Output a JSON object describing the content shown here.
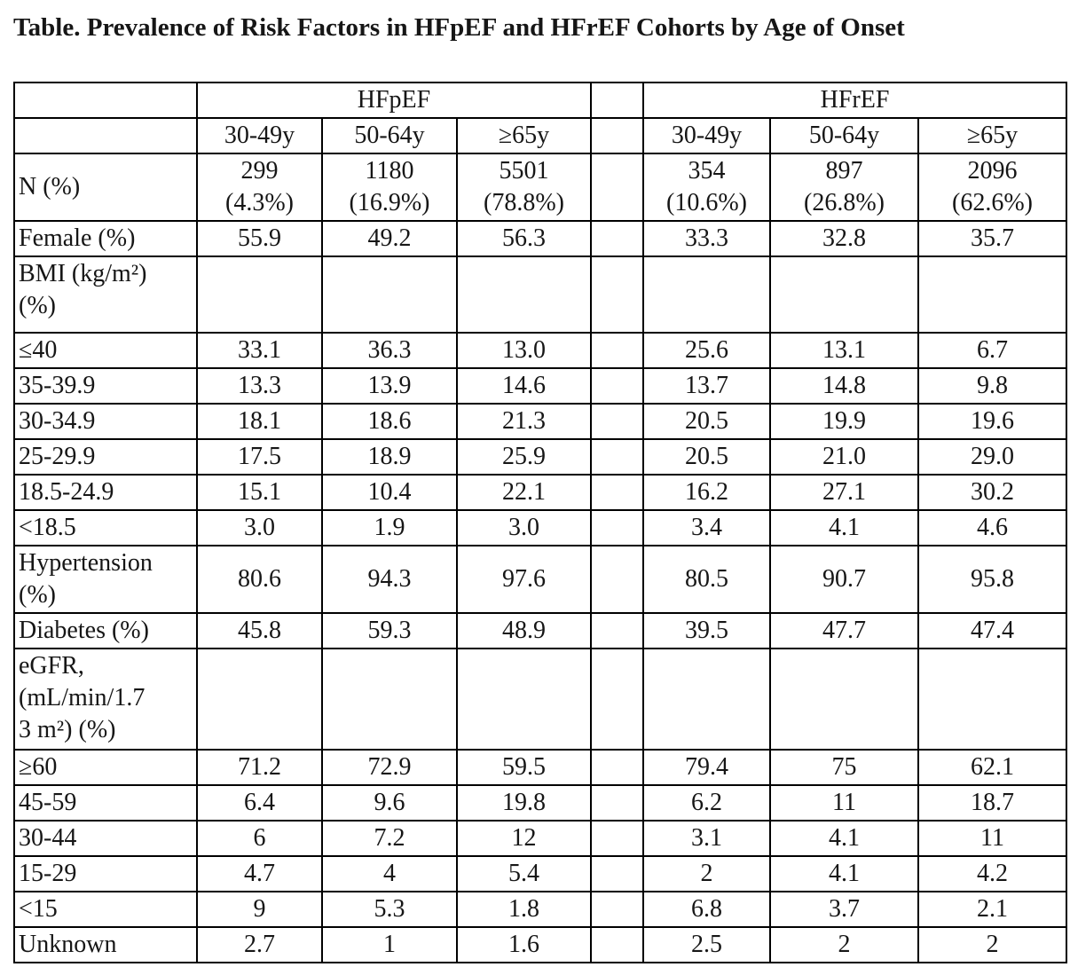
{
  "title": "Table. Prevalence of Risk Factors in HFpEF and HFrEF Cohorts by Age of Onset",
  "table": {
    "group_headers": [
      "HFpEF",
      "HFrEF"
    ],
    "age_headers": [
      "30-49y",
      "50-64y",
      "≥65y"
    ],
    "rows": [
      {
        "label": "N (%)",
        "section": false,
        "hfpef": [
          "299\n(4.3%)",
          "1180\n(16.9%)",
          "5501\n(78.8%)"
        ],
        "hfref": [
          "354\n(10.6%)",
          "897\n(26.8%)",
          "2096\n(62.6%)"
        ]
      },
      {
        "label": "Female (%)",
        "section": false,
        "hfpef": [
          "55.9",
          "49.2",
          "56.3"
        ],
        "hfref": [
          "33.3",
          "32.8",
          "35.7"
        ]
      },
      {
        "label": "BMI (kg/m²)\n(%)",
        "section": true,
        "hfpef": [
          "",
          "",
          ""
        ],
        "hfref": [
          "",
          "",
          ""
        ]
      },
      {
        "label": "≤40",
        "section": false,
        "hfpef": [
          "33.1",
          "36.3",
          "13.0"
        ],
        "hfref": [
          "25.6",
          "13.1",
          "6.7"
        ]
      },
      {
        "label": "35-39.9",
        "section": false,
        "hfpef": [
          "13.3",
          "13.9",
          "14.6"
        ],
        "hfref": [
          "13.7",
          "14.8",
          "9.8"
        ]
      },
      {
        "label": "30-34.9",
        "section": false,
        "hfpef": [
          "18.1",
          "18.6",
          "21.3"
        ],
        "hfref": [
          "20.5",
          "19.9",
          "19.6"
        ]
      },
      {
        "label": "25-29.9",
        "section": false,
        "hfpef": [
          "17.5",
          "18.9",
          "25.9"
        ],
        "hfref": [
          "20.5",
          "21.0",
          "29.0"
        ]
      },
      {
        "label": "18.5-24.9",
        "section": false,
        "hfpef": [
          "15.1",
          "10.4",
          "22.1"
        ],
        "hfref": [
          "16.2",
          "27.1",
          "30.2"
        ]
      },
      {
        "label": "<18.5",
        "section": false,
        "hfpef": [
          "3.0",
          "1.9",
          "3.0"
        ],
        "hfref": [
          "3.4",
          "4.1",
          "4.6"
        ]
      },
      {
        "label": "Hypertension\n(%)",
        "section": false,
        "hfpef": [
          "80.6",
          "94.3",
          "97.6"
        ],
        "hfref": [
          "80.5",
          "90.7",
          "95.8"
        ]
      },
      {
        "label": "Diabetes (%)",
        "section": false,
        "hfpef": [
          "45.8",
          "59.3",
          "48.9"
        ],
        "hfref": [
          "39.5",
          "47.7",
          "47.4"
        ]
      },
      {
        "label": "eGFR,\n(mL/min/1.7\n3 m²) (%)",
        "section": true,
        "hfpef": [
          "",
          "",
          ""
        ],
        "hfref": [
          "",
          "",
          ""
        ]
      },
      {
        "label": "≥60",
        "section": false,
        "hfpef": [
          "71.2",
          "72.9",
          "59.5"
        ],
        "hfref": [
          "79.4",
          "75",
          "62.1"
        ]
      },
      {
        "label": "45-59",
        "section": false,
        "hfpef": [
          "6.4",
          "9.6",
          "19.8"
        ],
        "hfref": [
          "6.2",
          "11",
          "18.7"
        ]
      },
      {
        "label": "30-44",
        "section": false,
        "hfpef": [
          "6",
          "7.2",
          "12"
        ],
        "hfref": [
          "3.1",
          "4.1",
          "11"
        ]
      },
      {
        "label": "15-29",
        "section": false,
        "hfpef": [
          "4.7",
          "4",
          "5.4"
        ],
        "hfref": [
          "2",
          "4.1",
          "4.2"
        ]
      },
      {
        "label": "<15",
        "section": false,
        "hfpef": [
          "9",
          "5.3",
          "1.8"
        ],
        "hfref": [
          "6.8",
          "3.7",
          "2.1"
        ]
      },
      {
        "label": "Unknown",
        "section": false,
        "hfpef": [
          "2.7",
          "1",
          "1.6"
        ],
        "hfref": [
          "2.5",
          "2",
          "2"
        ]
      }
    ]
  },
  "colors": {
    "text": "#161616",
    "border": "#000000",
    "background": "#ffffff"
  }
}
